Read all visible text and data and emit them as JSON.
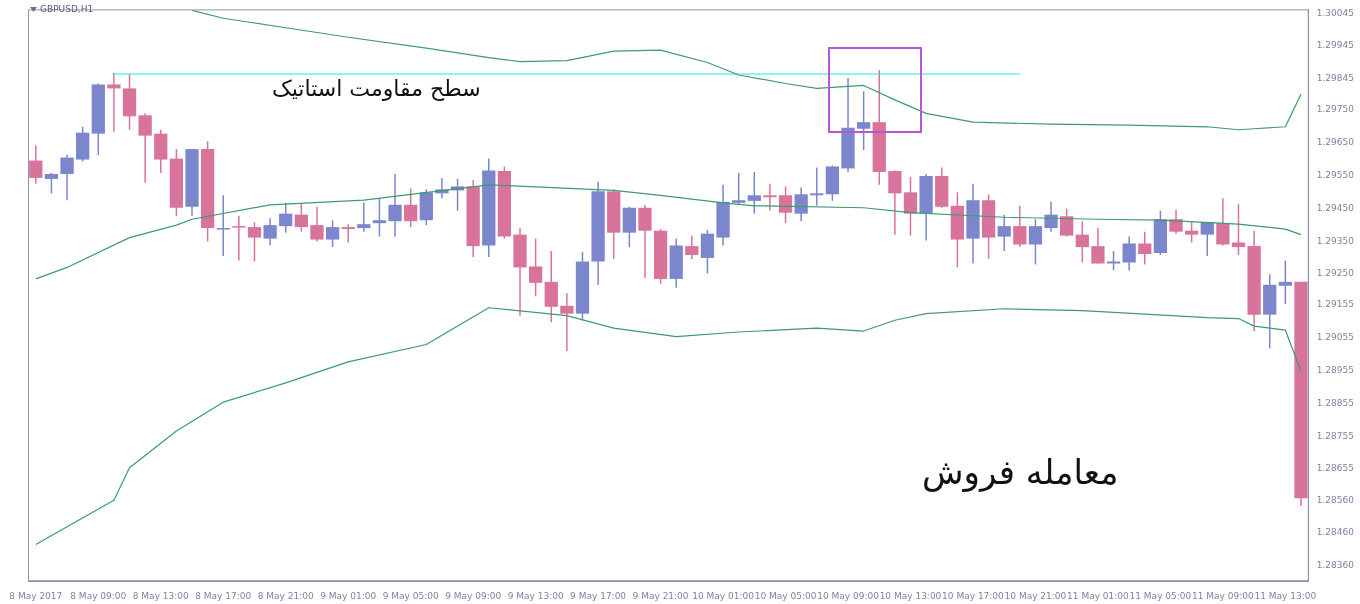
{
  "chart_data": {
    "type": "candlestick",
    "title": "GBPUSD,H1",
    "categories": [
      "8 May 2017",
      null,
      null,
      null,
      "8 May 09:00",
      null,
      null,
      null,
      "8 May 13:00",
      null,
      null,
      null,
      "8 May 17:00",
      null,
      null,
      null,
      "8 May 21:00",
      null,
      null,
      null,
      "9 May 01:00",
      null,
      null,
      null,
      "9 May 05:00",
      null,
      null,
      null,
      "9 May 09:00",
      null,
      null,
      null,
      "9 May 13:00",
      null,
      null,
      null,
      "9 May 17:00",
      null,
      null,
      null,
      "9 May 21:00",
      null,
      null,
      null,
      "10 May 01:00",
      null,
      null,
      null,
      "10 May 05:00",
      null,
      null,
      null,
      "10 May 09:00",
      null,
      null,
      null,
      "10 May 13:00",
      null,
      null,
      null,
      "10 May 17:00",
      null,
      null,
      null,
      "10 May 21:00",
      null,
      null,
      null,
      "11 May 01:00",
      null,
      null,
      null,
      "11 May 05:00",
      null,
      null,
      null,
      "11 May 09:00",
      null,
      null,
      null,
      "11 May 13:00",
      null
    ],
    "ohlc": [
      [
        1.29596,
        1.29643,
        1.29525,
        1.29543
      ],
      [
        1.2954,
        1.29558,
        1.29496,
        1.29555
      ],
      [
        1.29555,
        1.29613,
        1.29475,
        1.29605
      ],
      [
        1.29599,
        1.29699,
        1.29593,
        1.29681
      ],
      [
        1.29678,
        1.29831,
        1.29613,
        1.29828
      ],
      [
        1.29828,
        1.29863,
        1.29684,
        1.29816
      ],
      [
        1.29816,
        1.2986,
        1.2969,
        1.29731
      ],
      [
        1.29734,
        1.2974,
        1.29528,
        1.29672
      ],
      [
        1.29678,
        1.2969,
        1.29558,
        1.29599
      ],
      [
        1.29602,
        1.29631,
        1.29426,
        1.29452
      ],
      [
        1.29455,
        1.29631,
        1.29428,
        1.29631
      ],
      [
        1.29631,
        1.29655,
        1.29349,
        1.2939
      ],
      [
        1.2939,
        1.2949,
        1.29305,
        1.2939
      ],
      [
        1.29396,
        1.29428,
        1.29291,
        1.29393
      ],
      [
        1.29393,
        1.29408,
        1.29288,
        1.29361
      ],
      [
        1.29358,
        1.2942,
        1.29337,
        1.29399
      ],
      [
        1.29396,
        1.29467,
        1.29376,
        1.29434
      ],
      [
        1.29431,
        1.29464,
        1.29379,
        1.29393
      ],
      [
        1.29399,
        1.29455,
        1.29349,
        1.29355
      ],
      [
        1.29355,
        1.29414,
        1.29332,
        1.29393
      ],
      [
        1.29393,
        1.29402,
        1.29346,
        1.29387
      ],
      [
        1.2939,
        1.29467,
        1.29379,
        1.29402
      ],
      [
        1.29405,
        1.29481,
        1.29364,
        1.29414
      ],
      [
        1.29411,
        1.29555,
        1.29364,
        1.29461
      ],
      [
        1.29461,
        1.29511,
        1.29393,
        1.29411
      ],
      [
        1.29414,
        1.29508,
        1.29399,
        1.29499
      ],
      [
        1.29496,
        1.29543,
        1.29481,
        1.29508
      ],
      [
        1.29505,
        1.2954,
        1.29443,
        1.29517
      ],
      [
        1.29517,
        1.29537,
        1.29302,
        1.29335
      ],
      [
        1.29337,
        1.29602,
        1.29302,
        1.29566
      ],
      [
        1.29564,
        1.29578,
        1.29358,
        1.29364
      ],
      [
        1.2937,
        1.2939,
        1.29123,
        1.2927
      ],
      [
        1.29273,
        1.29358,
        1.29182,
        1.29223
      ],
      [
        1.29226,
        1.2932,
        1.29103,
        1.2915
      ],
      [
        1.29153,
        1.29191,
        1.29015,
        1.29129
      ],
      [
        1.29129,
        1.29317,
        1.29109,
        1.29288
      ],
      [
        1.29288,
        1.29531,
        1.29217,
        1.29502
      ],
      [
        1.29502,
        1.29508,
        1.29296,
        1.29376
      ],
      [
        1.29376,
        1.29455,
        1.29332,
        1.29452
      ],
      [
        1.29452,
        1.29461,
        1.29238,
        1.29382
      ],
      [
        1.29382,
        1.29387,
        1.2922,
        1.29235
      ],
      [
        1.29235,
        1.29358,
        1.29208,
        1.29337
      ],
      [
        1.29335,
        1.29367,
        1.29296,
        1.29308
      ],
      [
        1.29299,
        1.29384,
        1.29252,
        1.29373
      ],
      [
        1.29361,
        1.29522,
        1.29337,
        1.2947
      ],
      [
        1.29467,
        1.29558,
        1.29461,
        1.29475
      ],
      [
        1.29473,
        1.29561,
        1.29434,
        1.2949
      ],
      [
        1.2949,
        1.29525,
        1.29443,
        1.29484
      ],
      [
        1.2949,
        1.29517,
        1.29405,
        1.29437
      ],
      [
        1.29434,
        1.29514,
        1.29411,
        1.29493
      ],
      [
        1.2949,
        1.29575,
        1.29458,
        1.29496
      ],
      [
        1.29493,
        1.29581,
        1.29473,
        1.29578
      ],
      [
        1.29572,
        1.29848,
        1.29561,
        1.29696
      ],
      [
        1.29693,
        1.29807,
        1.29628,
        1.29713
      ],
      [
        1.29713,
        1.29872,
        1.29522,
        1.29561
      ],
      [
        1.29564,
        1.29566,
        1.2937,
        1.29496
      ],
      [
        1.29499,
        1.29546,
        1.29367,
        1.29434
      ],
      [
        1.29434,
        1.29555,
        1.29352,
        1.29549
      ],
      [
        1.29549,
        1.29575,
        1.29452,
        1.29455
      ],
      [
        1.29458,
        1.29499,
        1.2927,
        1.29355
      ],
      [
        1.29358,
        1.29525,
        1.29282,
        1.29475
      ],
      [
        1.29475,
        1.29493,
        1.29296,
        1.29361
      ],
      [
        1.29364,
        1.29431,
        1.2932,
        1.29396
      ],
      [
        1.29396,
        1.29458,
        1.29332,
        1.2934
      ],
      [
        1.2934,
        1.29417,
        1.29279,
        1.29396
      ],
      [
        1.2939,
        1.2947,
        1.29379,
        1.29431
      ],
      [
        1.29426,
        1.29449,
        1.29364,
        1.29367
      ],
      [
        1.2937,
        1.29411,
        1.29285,
        1.29332
      ],
      [
        1.29335,
        1.2939,
        1.29282,
        1.29282
      ],
      [
        1.29282,
        1.2932,
        1.29261,
        1.29288
      ],
      [
        1.29285,
        1.29364,
        1.29261,
        1.29343
      ],
      [
        1.29343,
        1.29379,
        1.29279,
        1.29311
      ],
      [
        1.29314,
        1.29443,
        1.29308,
        1.29417
      ],
      [
        1.29417,
        1.29446,
        1.29373,
        1.29379
      ],
      [
        1.29382,
        1.29408,
        1.29346,
        1.2937
      ],
      [
        1.2937,
        1.29408,
        1.29305,
        1.29408
      ],
      [
        1.29405,
        1.29481,
        1.29337,
        1.2934
      ],
      [
        1.29346,
        1.29464,
        1.29308,
        1.29332
      ],
      [
        1.29335,
        1.29382,
        1.29076,
        1.29126
      ],
      [
        1.29126,
        1.29249,
        1.29023,
        1.29217
      ],
      [
        1.29214,
        1.29291,
        1.29158,
        1.29226
      ],
      [
        1.29226,
        1.29226,
        1.28542,
        1.28566
      ]
    ],
    "colors": [
      "#d8739c",
      "#7b86cc",
      "#7b86cc",
      "#7b86cc",
      "#7b86cc",
      "#d8739c",
      "#d8739c",
      "#d8739c",
      "#d8739c",
      "#d8739c",
      "#7b86cc",
      "#d8739c",
      "#7b86cc",
      "#d8739c",
      "#d8739c",
      "#7b86cc",
      "#7b86cc",
      "#d8739c",
      "#d8739c",
      "#7b86cc",
      "#d8739c",
      "#7b86cc",
      "#7b86cc",
      "#7b86cc",
      "#d8739c",
      "#7b86cc",
      "#7b86cc",
      "#7b86cc",
      "#d8739c",
      "#7b86cc",
      "#d8739c",
      "#d8739c",
      "#d8739c",
      "#d8739c",
      "#d8739c",
      "#7b86cc",
      "#7b86cc",
      "#d8739c",
      "#7b86cc",
      "#d8739c",
      "#d8739c",
      "#7b86cc",
      "#d8739c",
      "#7b86cc",
      "#7b86cc",
      "#7b86cc",
      "#7b86cc",
      "#d8739c",
      "#d8739c",
      "#7b86cc",
      "#7b86cc",
      "#7b86cc",
      "#7b86cc",
      "#7b86cc",
      "#d8739c",
      "#d8739c",
      "#d8739c",
      "#7b86cc",
      "#d8739c",
      "#d8739c",
      "#7b86cc",
      "#d8739c",
      "#7b86cc",
      "#d8739c",
      "#7b86cc",
      "#7b86cc",
      "#d8739c",
      "#d8739c",
      "#d8739c",
      "#7b86cc",
      "#7b86cc",
      "#d8739c",
      "#7b86cc",
      "#d8739c",
      "#d8739c",
      "#7b86cc",
      "#d8739c",
      "#d8739c",
      "#d8739c",
      "#7b86cc",
      "#7b86cc",
      "#d8739c"
    ],
    "series": [
      {
        "type": "line",
        "color": "#3c9c6c",
        "values": [
          null,
          null,
          null,
          null,
          null,
          null,
          null,
          null,
          null,
          null,
          1.30054,
          null,
          1.3003,
          null,
          null,
          null,
          1.30001,
          null,
          null,
          null,
          1.29972,
          null,
          null,
          null,
          null,
          1.29939,
          null,
          null,
          null,
          1.2991,
          null,
          1.29898,
          null,
          null,
          1.29901,
          null,
          null,
          1.2993,
          null,
          null,
          1.29933,
          null,
          null,
          1.29895,
          null,
          1.29857,
          null,
          null,
          1.29831,
          null,
          1.29816,
          null,
          1.29822,
          1.29825,
          null,
          1.29781,
          null,
          1.2974,
          null,
          null,
          1.29713,
          null,
          null,
          null,
          null,
          1.29707,
          null,
          null,
          null,
          null,
          1.29704,
          null,
          null,
          null,
          null,
          1.29699,
          null,
          1.2969,
          1.29693,
          null,
          1.29699,
          1.29798
        ]
      },
      {
        "type": "line",
        "color": "#3c9c6c",
        "values": [
          1.29235,
          null,
          1.2927,
          null,
          null,
          null,
          1.29361,
          null,
          null,
          1.29399,
          1.29417,
          null,
          null,
          null,
          null,
          1.29461,
          null,
          null,
          null,
          null,
          null,
          1.29475,
          null,
          null,
          null,
          null,
          null,
          null,
          null,
          1.29522,
          null,
          null,
          null,
          null,
          null,
          null,
          null,
          1.29505,
          null,
          null,
          1.2949,
          null,
          null,
          null,
          1.29467,
          null,
          1.29458,
          null,
          null,
          null,
          null,
          null,
          null,
          1.29452,
          null,
          null,
          1.29437,
          null,
          null,
          null,
          null,
          null,
          1.29423,
          null,
          null,
          null,
          null,
          null,
          1.29417,
          null,
          null,
          null,
          1.29414,
          null,
          null,
          null,
          null,
          1.29402,
          null,
          null,
          1.29387,
          1.2937
        ]
      },
      {
        "type": "line",
        "color": "#3c9c6c",
        "values": [
          1.28425,
          null,
          null,
          null,
          null,
          1.2856,
          1.28659,
          null,
          null,
          1.28771,
          null,
          null,
          1.28859,
          null,
          null,
          null,
          1.28918,
          null,
          null,
          null,
          1.28982,
          null,
          null,
          null,
          null,
          1.29035,
          null,
          null,
          null,
          1.29147,
          null,
          null,
          null,
          null,
          1.29123,
          null,
          null,
          1.29085,
          null,
          null,
          null,
          1.29059,
          null,
          null,
          null,
          1.29073,
          null,
          null,
          null,
          null,
          1.29085,
          null,
          null,
          1.29076,
          null,
          1.29109,
          null,
          1.29129,
          null,
          null,
          null,
          null,
          1.29144,
          null,
          null,
          null,
          null,
          1.29138,
          null,
          null,
          null,
          null,
          null,
          null,
          null,
          1.29117,
          null,
          1.29114,
          1.29091,
          null,
          1.29079,
          1.28953
        ]
      },
      {
        "type": "line",
        "color": "#22e6ec",
        "values": [
          null,
          null,
          null,
          null,
          null,
          1.2986,
          null,
          null,
          null,
          null,
          null,
          null,
          null,
          null,
          null,
          null,
          null,
          null,
          null,
          null,
          null,
          null,
          null,
          null,
          null,
          null,
          null,
          null,
          null,
          null,
          null,
          null,
          null,
          null,
          null,
          null,
          null,
          null,
          null,
          null,
          null,
          null,
          null,
          null,
          null,
          null,
          null,
          null,
          null,
          null,
          null,
          null,
          null,
          null,
          null,
          null,
          null,
          null,
          null,
          null,
          null,
          null,
          null,
          1.2986,
          null,
          null,
          null,
          null,
          null,
          null,
          null,
          null,
          null,
          null,
          null,
          null,
          null,
          null,
          null,
          null,
          null,
          null
        ]
      }
    ],
    "ylim": [
      1.28313,
      1.30057
    ],
    "yticks": [
      1.30045,
      1.29945,
      1.29845,
      {
        "value": 1.2975,
        "label": "1.29750"
      },
      {
        "value": 1.2965,
        "label": "1.29650"
      },
      {
        "value": 1.2955,
        "label": "1.29550"
      },
      {
        "value": 1.2945,
        "label": "1.29450"
      },
      {
        "value": 1.2935,
        "label": "1.29350"
      },
      {
        "value": 1.2925,
        "label": "1.29250"
      },
      1.29155,
      1.29055,
      1.28955,
      1.28855,
      1.28755,
      1.28655,
      {
        "value": 1.2856,
        "label": "1.28560"
      },
      {
        "value": 1.2846,
        "label": "1.28460"
      },
      {
        "value": 1.2836,
        "label": "1.28360"
      }
    ],
    "annotations": [
      "سطح مقاومت استاتیک",
      "معامله فروش"
    ],
    "grid": false,
    "legend": false
  }
}
